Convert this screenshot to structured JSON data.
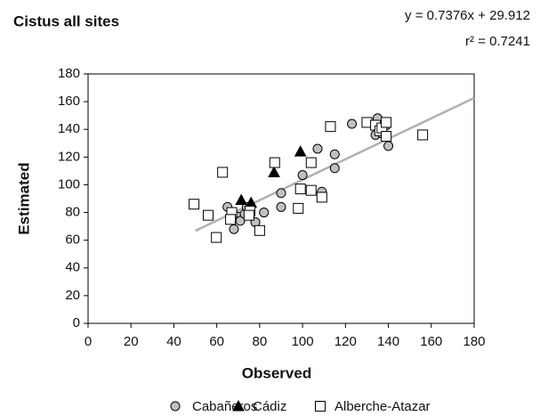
{
  "chart_data": {
    "type": "scatter",
    "title": "Cistus all sites",
    "annotations": [
      "y = 0.7376x + 29.912",
      "r² = 0.7241"
    ],
    "trendline": {
      "slope": 0.7376,
      "intercept": 29.912,
      "xlim": [
        50,
        180
      ],
      "color": "#b0b0b0"
    },
    "x_label": "Observed",
    "y_label": "Estimated",
    "xlim": [
      0,
      180
    ],
    "xticks": [
      0,
      20,
      40,
      60,
      80,
      100,
      120,
      140,
      160,
      180
    ],
    "ylim": [
      0,
      180
    ],
    "yticks": [
      0,
      20,
      40,
      60,
      80,
      100,
      120,
      140,
      160,
      180
    ],
    "grid": false,
    "legend": "bottom",
    "series": [
      {
        "name": "Cabañeros",
        "marker": "circle",
        "color": "#c0c0c0",
        "x": [
          65,
          68,
          70,
          71,
          73,
          74,
          78,
          82,
          90,
          90,
          99,
          100,
          107,
          109,
          115,
          115,
          123,
          134,
          135,
          139,
          139,
          140,
          137
        ],
        "values": [
          84,
          68,
          77,
          74,
          79,
          84,
          73,
          80,
          94,
          84,
          97,
          107,
          126,
          95,
          122,
          112,
          144,
          136,
          148,
          143,
          135,
          128,
          137
        ]
      },
      {
        "name": "Cádiz",
        "marker": "triangle",
        "color": "#000000",
        "x": [
          71.4,
          76,
          86.7,
          99
        ],
        "values": [
          89,
          87,
          109,
          124
        ]
      },
      {
        "name": "Alberche-Atazar",
        "marker": "square",
        "color": "#ffffff",
        "x": [
          49.4,
          56,
          59.8,
          62.7,
          67,
          66.4,
          75.5,
          75,
          80,
          87,
          98,
          99,
          104,
          104,
          109,
          113,
          130,
          134,
          136,
          137,
          139,
          139,
          156
        ],
        "values": [
          86,
          78,
          62,
          109,
          80,
          75,
          81,
          78,
          67,
          116,
          83,
          97,
          116,
          96,
          91,
          142,
          145,
          143,
          139,
          141,
          145,
          135,
          136
        ]
      }
    ]
  }
}
